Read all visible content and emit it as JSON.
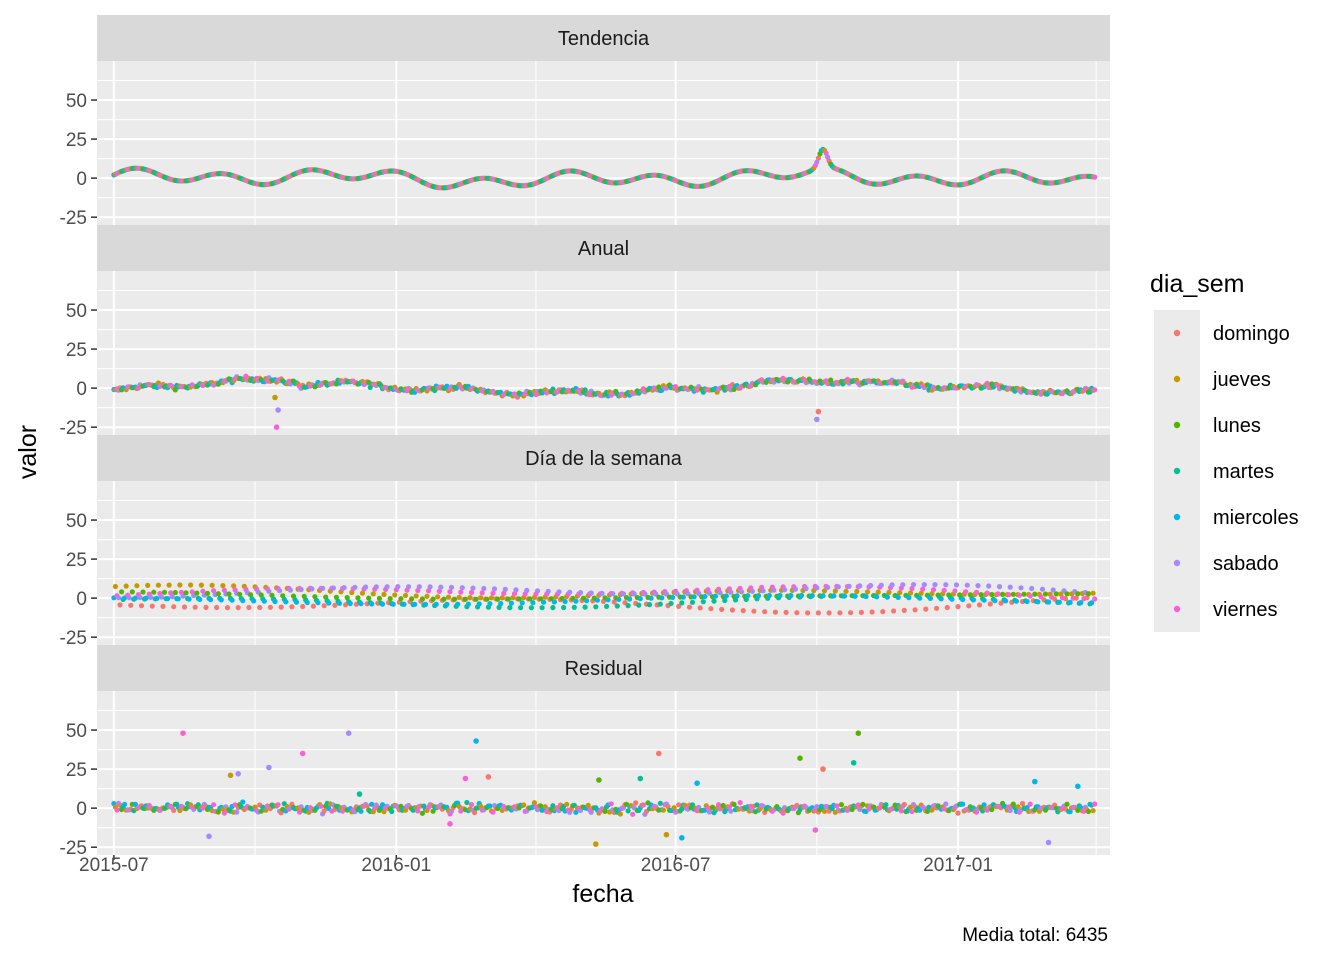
{
  "chart_data": {
    "type": "scatter",
    "xlabel": "fecha",
    "ylabel": "valor",
    "caption": "Media total: 6435",
    "x_ticks": [
      "2015-07",
      "2016-01",
      "2016-07",
      "2017-01"
    ],
    "x_range": [
      "2015-06-20",
      "2017-04-10"
    ],
    "y_ticks": [
      "50",
      "25",
      "0",
      "-25"
    ],
    "ylim": [
      -30,
      75
    ],
    "grid": true,
    "legend": {
      "title": "dia_sem",
      "position": "right",
      "items": [
        {
          "name": "domingo",
          "color": "#F8766D"
        },
        {
          "name": "jueves",
          "color": "#C49A00"
        },
        {
          "name": "lunes",
          "color": "#53B400"
        },
        {
          "name": "martes",
          "color": "#00C094"
        },
        {
          "name": "miercoles",
          "color": "#00B6EB"
        },
        {
          "name": "sabado",
          "color": "#A58AFF"
        },
        {
          "name": "viernes",
          "color": "#FB61D7"
        }
      ]
    },
    "date_range": [
      "2015-07-01",
      "2017-03-31"
    ],
    "panels": [
      {
        "title": "Tendencia",
        "kind": "trend",
        "notes": "wavy series oscillating roughly between -10 and 9, spike to about 20 near 2016-10"
      },
      {
        "title": "Anual",
        "kind": "annual",
        "notes": "smooth yearly pattern from about -8 to 12, outliers near -25 in 2015-10 and -20 in 2016-10"
      },
      {
        "title": "Día de la semana",
        "kind": "weekday",
        "notes": "seven smooth bands between about -9 and 13, one per day of the week"
      },
      {
        "title": "Residual",
        "kind": "residual",
        "notes": "points around 0 with scattered outliers between -25 and 50"
      }
    ],
    "residual_outliers": [
      {
        "x": "2015-08-15",
        "y": 48,
        "day": "viernes"
      },
      {
        "x": "2015-09-15",
        "y": 21,
        "day": "jueves"
      },
      {
        "x": "2015-09-20",
        "y": 22,
        "day": "sabado"
      },
      {
        "x": "2015-10-10",
        "y": 26,
        "day": "sabado"
      },
      {
        "x": "2015-11-01",
        "y": 35,
        "day": "viernes"
      },
      {
        "x": "2015-12-01",
        "y": 48,
        "day": "sabado"
      },
      {
        "x": "2015-12-08",
        "y": 9,
        "day": "martes"
      },
      {
        "x": "2016-02-15",
        "y": 19,
        "day": "viernes"
      },
      {
        "x": "2016-02-22",
        "y": 43,
        "day": "miercoles"
      },
      {
        "x": "2016-03-01",
        "y": 20,
        "day": "domingo"
      },
      {
        "x": "2016-05-12",
        "y": 18,
        "day": "lunes"
      },
      {
        "x": "2016-05-10",
        "y": -23,
        "day": "jueves"
      },
      {
        "x": "2016-06-08",
        "y": 19,
        "day": "martes"
      },
      {
        "x": "2016-06-20",
        "y": 35,
        "day": "domingo"
      },
      {
        "x": "2016-06-25",
        "y": -17,
        "day": "jueves"
      },
      {
        "x": "2016-07-05",
        "y": -19,
        "day": "miercoles"
      },
      {
        "x": "2016-07-15",
        "y": 16,
        "day": "miercoles"
      },
      {
        "x": "2016-09-20",
        "y": 32,
        "day": "lunes"
      },
      {
        "x": "2016-10-05",
        "y": 25,
        "day": "domingo"
      },
      {
        "x": "2016-10-25",
        "y": 29,
        "day": "martes"
      },
      {
        "x": "2016-10-28",
        "y": 48,
        "day": "lunes"
      },
      {
        "x": "2015-09-01",
        "y": -18,
        "day": "sabado"
      },
      {
        "x": "2016-02-05",
        "y": -10,
        "day": "viernes"
      },
      {
        "x": "2016-09-30",
        "y": -14,
        "day": "viernes"
      },
      {
        "x": "2017-03-01",
        "y": -22,
        "day": "sabado"
      },
      {
        "x": "2017-02-20",
        "y": 17,
        "day": "miercoles"
      },
      {
        "x": "2017-03-20",
        "y": 14,
        "day": "miercoles"
      }
    ]
  }
}
